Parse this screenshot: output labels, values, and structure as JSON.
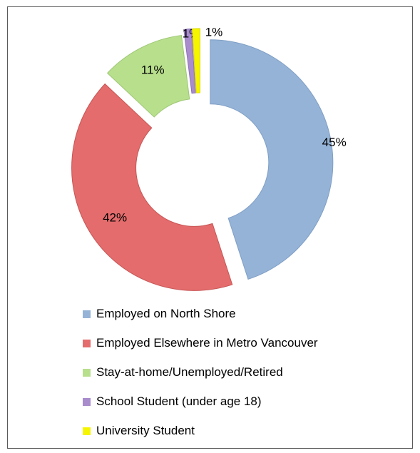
{
  "chart_data": {
    "type": "pie",
    "style": "exploded donut",
    "title": "",
    "legend_position": "bottom",
    "categories": [
      "Employed on North Shore",
      "Employed Elsewhere in Metro Vancouver",
      "Stay-at-home/Unemployed/Retired",
      "School Student (under age 18)",
      "University Student"
    ],
    "values": [
      45,
      42,
      11,
      1,
      1
    ],
    "labels": [
      "45%",
      "42%",
      "11%",
      "1%",
      "1%"
    ],
    "colors": [
      "#95b3d7",
      "#e46c6c",
      "#b8df8c",
      "#a88ccc",
      "#f5f500"
    ],
    "edge_colors": [
      "#7f9fc5",
      "#c85555",
      "#9ec776",
      "#8e72b5",
      "#d8d800"
    ]
  }
}
